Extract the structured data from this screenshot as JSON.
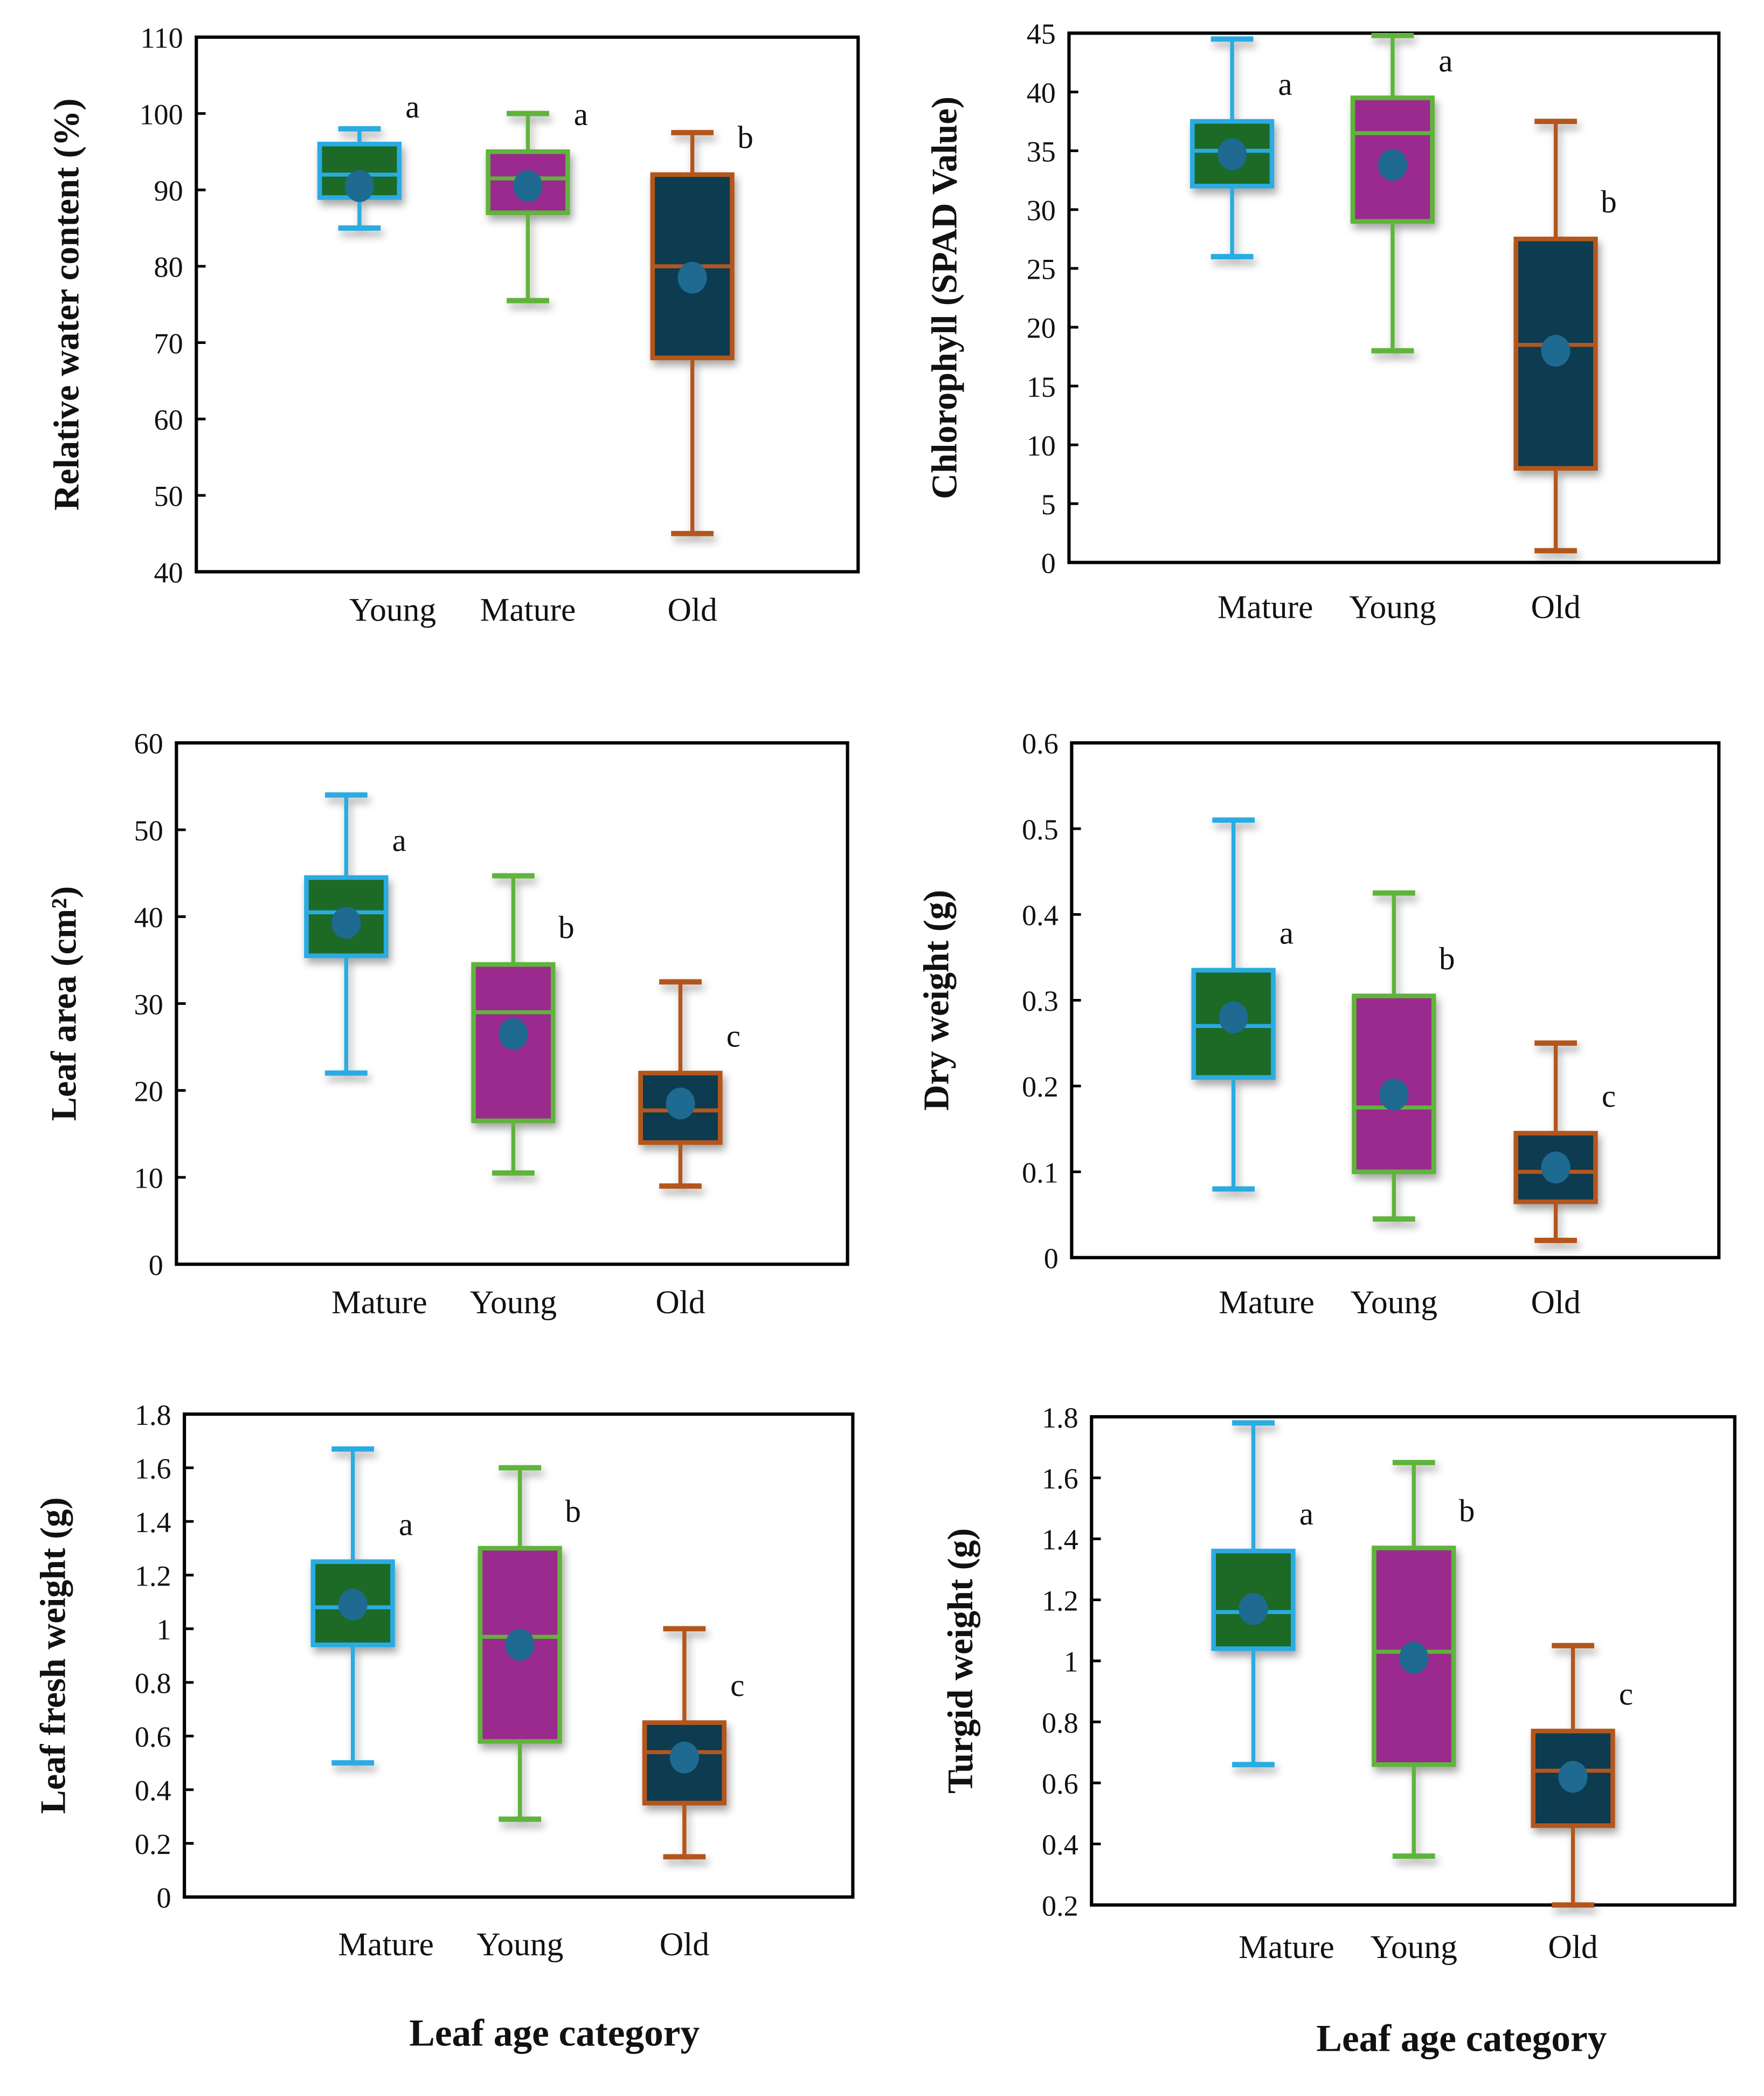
{
  "colors": {
    "series": [
      {
        "fill": "#1b6b25",
        "stroke": "#29abe2"
      },
      {
        "fill": "#9b2a8e",
        "stroke": "#5fb43b"
      },
      {
        "fill": "#0e3a50",
        "stroke": "#b4561f"
      }
    ],
    "mean_marker": "#1e6a90"
  },
  "x_axis_title": "Leaf age category",
  "chart_data": [
    {
      "type": "box",
      "ylabel": "Relative water content (%)",
      "ylim": [
        40,
        110
      ],
      "yticks": [
        40,
        50,
        60,
        70,
        80,
        90,
        100,
        110
      ],
      "categories": [
        "Young",
        "Mature",
        "Old"
      ],
      "boxes": [
        {
          "min": 85,
          "q1": 89,
          "median": 92,
          "q3": 96,
          "max": 98,
          "mean": 90.5,
          "letter": "a"
        },
        {
          "min": 75.5,
          "q1": 87,
          "median": 91.5,
          "q3": 95,
          "max": 100,
          "mean": 90.5,
          "letter": "a"
        },
        {
          "min": 45,
          "q1": 68,
          "median": 80,
          "q3": 92,
          "max": 97.5,
          "mean": 78.5,
          "letter": "b"
        }
      ]
    },
    {
      "type": "box",
      "ylabel": "Chlorophyll (SPAD Value)",
      "ylim": [
        0,
        45
      ],
      "yticks": [
        0,
        5,
        10,
        15,
        20,
        25,
        30,
        35,
        40,
        45
      ],
      "categories": [
        "Mature",
        "Young",
        "Old"
      ],
      "boxes": [
        {
          "min": 26,
          "q1": 32,
          "median": 35,
          "q3": 37.5,
          "max": 44.5,
          "mean": 34.7,
          "letter": "a"
        },
        {
          "min": 18,
          "q1": 29,
          "median": 36.5,
          "q3": 39.5,
          "max": 44.8,
          "mean": 33.8,
          "letter": "a"
        },
        {
          "min": 1,
          "q1": 8,
          "median": 18.5,
          "q3": 27.5,
          "max": 37.5,
          "mean": 18,
          "letter": "b"
        }
      ]
    },
    {
      "type": "box",
      "ylabel": "Leaf area (cm²)",
      "ylim": [
        0,
        60
      ],
      "yticks": [
        0,
        10,
        20,
        30,
        40,
        50,
        60
      ],
      "categories": [
        "Mature",
        "Young",
        "Old"
      ],
      "boxes": [
        {
          "min": 22,
          "q1": 35.5,
          "median": 40.5,
          "q3": 44.5,
          "max": 54,
          "mean": 39.3,
          "letter": "a"
        },
        {
          "min": 10.5,
          "q1": 16.5,
          "median": 29,
          "q3": 34.5,
          "max": 44.7,
          "mean": 26.5,
          "letter": "b"
        },
        {
          "min": 9,
          "q1": 14,
          "median": 17.7,
          "q3": 22,
          "max": 32.5,
          "mean": 18.5,
          "letter": "c"
        }
      ]
    },
    {
      "type": "box",
      "ylabel": "Dry weight (g)",
      "ylim": [
        0,
        0.6
      ],
      "yticks": [
        "0",
        "0.1",
        "0.2",
        "0.3",
        "0.4",
        "0.5",
        "0.6"
      ],
      "categories": [
        "Mature",
        "Young",
        "Old"
      ],
      "boxes": [
        {
          "min": 0.08,
          "q1": 0.21,
          "median": 0.27,
          "q3": 0.335,
          "max": 0.51,
          "mean": 0.28,
          "letter": "a"
        },
        {
          "min": 0.045,
          "q1": 0.1,
          "median": 0.175,
          "q3": 0.305,
          "max": 0.425,
          "mean": 0.19,
          "letter": "b"
        },
        {
          "min": 0.02,
          "q1": 0.065,
          "median": 0.1,
          "q3": 0.145,
          "max": 0.25,
          "mean": 0.105,
          "letter": "c"
        }
      ]
    },
    {
      "type": "box",
      "ylabel": "Leaf fresh weight (g)",
      "ylim": [
        0,
        1.8
      ],
      "yticks": [
        "0",
        "0.2",
        "0.4",
        "0.6",
        "0.8",
        "1",
        "1.2",
        "1.4",
        "1.6",
        "1.8"
      ],
      "categories": [
        "Mature",
        "Young",
        "Old"
      ],
      "boxes": [
        {
          "min": 0.5,
          "q1": 0.94,
          "median": 1.08,
          "q3": 1.25,
          "max": 1.67,
          "mean": 1.09,
          "letter": "a"
        },
        {
          "min": 0.29,
          "q1": 0.58,
          "median": 0.97,
          "q3": 1.3,
          "max": 1.6,
          "mean": 0.94,
          "letter": "b"
        },
        {
          "min": 0.15,
          "q1": 0.35,
          "median": 0.54,
          "q3": 0.65,
          "max": 1.0,
          "mean": 0.52,
          "letter": "c"
        }
      ]
    },
    {
      "type": "box",
      "ylabel": "Turgid weight (g)",
      "ylim": [
        0.2,
        1.8
      ],
      "yticks": [
        "0.2",
        "0.4",
        "0.6",
        "0.8",
        "1",
        "1.2",
        "1.4",
        "1.6",
        "1.8"
      ],
      "categories": [
        "Mature",
        "Young",
        "Old"
      ],
      "boxes": [
        {
          "min": 0.66,
          "q1": 1.04,
          "median": 1.16,
          "q3": 1.36,
          "max": 1.78,
          "mean": 1.17,
          "letter": "a"
        },
        {
          "min": 0.36,
          "q1": 0.66,
          "median": 1.03,
          "q3": 1.37,
          "max": 1.65,
          "mean": 1.01,
          "letter": "b"
        },
        {
          "min": 0.2,
          "q1": 0.46,
          "median": 0.64,
          "q3": 0.77,
          "max": 1.05,
          "mean": 0.62,
          "letter": "c"
        }
      ]
    }
  ]
}
